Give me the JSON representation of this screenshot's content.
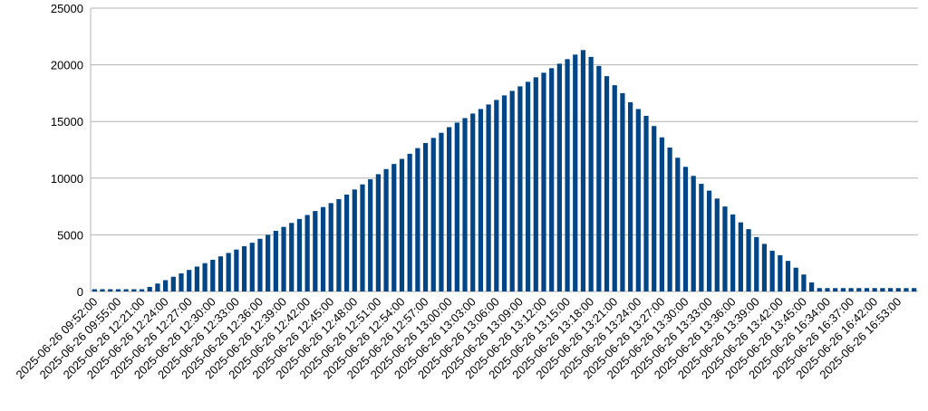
{
  "chart_data": {
    "type": "bar",
    "color": "#004586",
    "grid": true,
    "ylim": [
      0,
      25000
    ],
    "yticks": [
      0,
      5000,
      10000,
      15000,
      20000,
      25000
    ],
    "categories": [
      "2025-06-26 09:52:00",
      null,
      null,
      "2025-06-26 09:55:00",
      null,
      null,
      "2025-06-26 12:21:00",
      null,
      null,
      "2025-06-26 12:24:00",
      null,
      null,
      "2025-06-26 12:27:00",
      null,
      null,
      "2025-06-26 12:30:00",
      null,
      null,
      "2025-06-26 12:33:00",
      null,
      null,
      "2025-06-26 12:36:00",
      null,
      null,
      "2025-06-26 12:39:00",
      null,
      null,
      "2025-06-26 12:42:00",
      null,
      null,
      "2025-06-26 12:45:00",
      null,
      null,
      "2025-06-26 12:48:00",
      null,
      null,
      "2025-06-26 12:51:00",
      null,
      null,
      "2025-06-26 12:54:00",
      null,
      null,
      "2025-06-26 12:57:00",
      null,
      null,
      "2025-06-26 13:00:00",
      null,
      null,
      "2025-06-26 13:03:00",
      null,
      null,
      "2025-06-26 13:06:00",
      null,
      null,
      "2025-06-26 13:09:00",
      null,
      null,
      "2025-06-26 13:12:00",
      null,
      null,
      "2025-06-26 13:15:00",
      null,
      null,
      "2025-06-26 13:18:00",
      null,
      null,
      "2025-06-26 13:21:00",
      null,
      null,
      "2025-06-26 13:24:00",
      null,
      null,
      "2025-06-26 13:27:00",
      null,
      null,
      "2025-06-26 13:30:00",
      null,
      null,
      "2025-06-26 13:33:00",
      null,
      null,
      "2025-06-26 13:36:00",
      null,
      null,
      "2025-06-26 13:39:00",
      null,
      null,
      "2025-06-26 13:42:00",
      null,
      null,
      "2025-06-26 13:45:00",
      null,
      null,
      "2025-06-26 16:34:00",
      null,
      null,
      "2025-06-26 16:37:00",
      null,
      null,
      "2025-06-26 16:42:00",
      null,
      null,
      "2025-06-26 16:53:00",
      null,
      null
    ],
    "values": [
      200,
      200,
      200,
      200,
      200,
      200,
      200,
      400,
      700,
      1000,
      1300,
      1600,
      1900,
      2200,
      2500,
      2800,
      3100,
      3400,
      3700,
      4000,
      4300,
      4650,
      5000,
      5350,
      5700,
      6050,
      6400,
      6750,
      7100,
      7450,
      7800,
      8150,
      8550,
      9000,
      9450,
      9900,
      10350,
      10800,
      11250,
      11700,
      12150,
      12650,
      13100,
      13550,
      14000,
      14500,
      14900,
      15300,
      15700,
      16100,
      16500,
      16900,
      17300,
      17700,
      18100,
      18500,
      18900,
      19300,
      19700,
      20100,
      20500,
      20900,
      21300,
      20700,
      19900,
      19000,
      18200,
      17500,
      16700,
      16100,
      15500,
      14600,
      13600,
      12700,
      11800,
      11000,
      10200,
      9500,
      8900,
      8200,
      7500,
      6800,
      6100,
      5500,
      4800,
      4200,
      3600,
      3200,
      2700,
      2100,
      1500,
      800,
      300,
      300,
      300,
      300,
      300,
      300,
      300,
      300,
      300,
      300,
      300,
      300,
      300
    ]
  }
}
